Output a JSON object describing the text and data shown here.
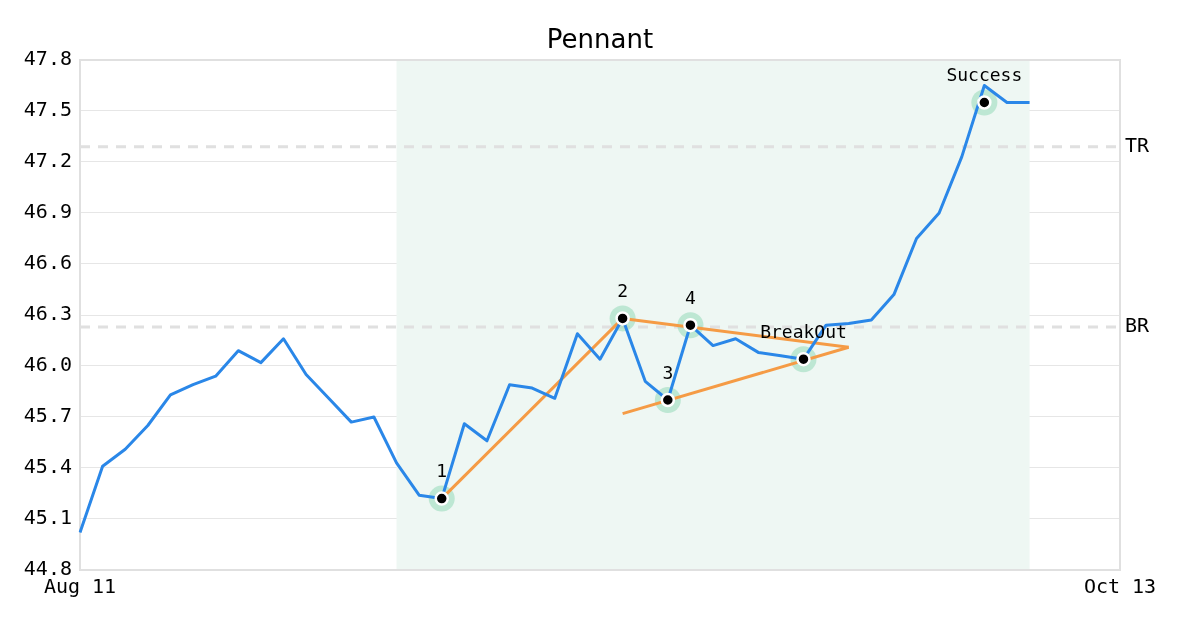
{
  "chart_data": {
    "type": "line",
    "title": "Pennant",
    "categories": [
      "Aug 11",
      null,
      null,
      null,
      null,
      null,
      null,
      null,
      null,
      null,
      null,
      null,
      null,
      null,
      null,
      null,
      null,
      null,
      null,
      null,
      null,
      null,
      null,
      null,
      null,
      null,
      null,
      null,
      null,
      null,
      null,
      null,
      null,
      null,
      null,
      null,
      null,
      null,
      null,
      null,
      null,
      null,
      null,
      null,
      null,
      null,
      "Oct 13"
    ],
    "ylim": [
      44.8,
      47.8
    ],
    "yticks": [
      44.8,
      45.1,
      45.4,
      45.7,
      {
        "value": 46,
        "label": "46.0"
      },
      46.3,
      46.6,
      46.9,
      47.2,
      47.5,
      47.8
    ],
    "grid": "y",
    "legend": false,
    "series": [
      {
        "color": "#2a87e8",
        "marker": "none",
        "values": [
          45.02,
          45.41,
          45.51,
          45.65,
          45.83,
          45.89,
          45.94,
          46.09,
          46.02,
          46.16,
          45.95,
          45.81,
          45.67,
          45.7,
          45.43,
          45.24,
          45.22,
          45.66,
          45.56,
          45.89,
          45.87,
          45.81,
          46.19,
          46.04,
          46.28,
          45.91,
          45.8,
          46.24,
          46.12,
          46.16,
          46.08,
          46.06,
          46.04,
          46.24,
          46.25,
          46.27,
          46.42,
          46.75,
          46.9,
          47.23,
          47.65,
          47.55,
          47.55,
          null,
          null,
          null,
          null
        ]
      },
      {
        "type": "line",
        "color": "#f59b45",
        "values": [
          null,
          null,
          null,
          null,
          null,
          null,
          null,
          null,
          null,
          null,
          null,
          null,
          null,
          null,
          null,
          null,
          45.22,
          null,
          null,
          null,
          null,
          null,
          null,
          null,
          46.28,
          null,
          null,
          null,
          null,
          null,
          null,
          null,
          null,
          null,
          null,
          null,
          null,
          null,
          null,
          null,
          null,
          null,
          null,
          null,
          null,
          null,
          null
        ]
      },
      {
        "type": "line",
        "color": "#f59b45",
        "values": [
          null,
          null,
          null,
          null,
          null,
          null,
          null,
          null,
          null,
          null,
          null,
          null,
          null,
          null,
          null,
          null,
          null,
          null,
          null,
          null,
          null,
          null,
          null,
          null,
          46.28,
          null,
          null,
          null,
          null,
          null,
          null,
          null,
          null,
          null,
          46.11,
          null,
          null,
          null,
          null,
          null,
          null,
          null,
          null,
          null,
          null,
          null,
          null
        ]
      },
      {
        "type": "line",
        "color": "#f59b45",
        "values": [
          null,
          null,
          null,
          null,
          null,
          null,
          null,
          null,
          null,
          null,
          null,
          null,
          null,
          null,
          null,
          null,
          null,
          null,
          null,
          null,
          null,
          null,
          null,
          null,
          45.72,
          null,
          null,
          null,
          null,
          null,
          null,
          null,
          null,
          null,
          46.11,
          null,
          null,
          null,
          null,
          null,
          null,
          null,
          null,
          null,
          null,
          null,
          null
        ]
      },
      {
        "type": "scatter",
        "color": "#000000",
        "marker": "circle",
        "values": [
          null,
          null,
          null,
          null,
          null,
          null,
          null,
          null,
          null,
          null,
          null,
          null,
          null,
          null,
          null,
          null,
          45.22,
          null,
          null,
          null,
          null,
          null,
          null,
          null,
          46.28,
          null,
          45.8,
          46.24,
          null,
          null,
          null,
          null,
          46.04,
          null,
          null,
          null,
          null,
          null,
          null,
          null,
          47.55,
          null,
          null,
          null,
          null,
          null,
          null
        ]
      }
    ],
    "ref_lines": [
      {
        "axis": "y",
        "value": 47.29,
        "label": "TR",
        "color": "#e0e0e0",
        "line_style": "dashed"
      },
      {
        "axis": "y",
        "value": 46.23,
        "label": "BR",
        "color": "#e0e0e0",
        "line_style": "dashed"
      }
    ],
    "annotations": [
      {
        "text": "1",
        "y": 45.22
      },
      {
        "text": "2",
        "y": 46.28
      },
      {
        "text": "3",
        "y": 45.8
      },
      {
        "text": "4",
        "y": 46.24
      },
      {
        "text": "BreakOut",
        "y": 46.04
      },
      {
        "text": "Success",
        "y": 47.55
      }
    ]
  }
}
